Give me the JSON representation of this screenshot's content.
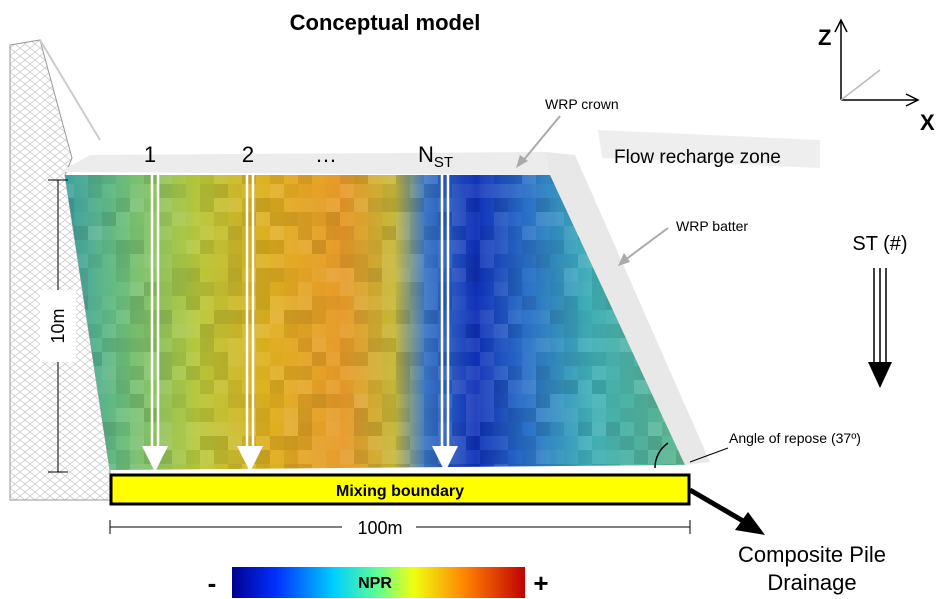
{
  "title": "Conceptual model",
  "axes": {
    "z": "Z",
    "x": "X"
  },
  "streamtubes": [
    {
      "label": "1"
    },
    {
      "label": "2"
    },
    {
      "label": "…"
    },
    {
      "label": "N",
      "subscript": "ST"
    }
  ],
  "annotations": {
    "wrp_crown": "WRP crown",
    "flow_recharge_zone": "Flow recharge zone",
    "wrp_batter": "WRP batter",
    "st_count": "ST (#)",
    "height": "10m",
    "angle_of_repose": "Angle of repose (37º)",
    "mixing_boundary": "Mixing boundary",
    "width": "100m",
    "drainage": [
      "Composite Pile",
      "Drainage"
    ]
  },
  "colorbar": {
    "label": "NPR",
    "min": "-",
    "max": "+"
  }
}
